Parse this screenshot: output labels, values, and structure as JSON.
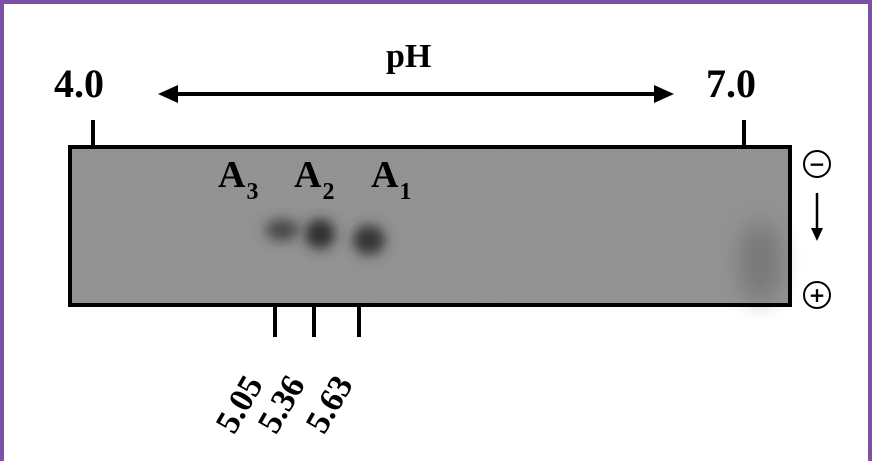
{
  "ph_axis": {
    "title": "pH",
    "low": "4.0",
    "high": "7.0"
  },
  "bands": [
    {
      "label": "A",
      "sub": "3",
      "pi": 5.05
    },
    {
      "label": "A",
      "sub": "2",
      "pi": 5.36
    },
    {
      "label": "A",
      "sub": "1",
      "pi": 5.63
    }
  ],
  "pi_labels": [
    "5.05",
    "5.36",
    "5.63"
  ],
  "electrodes": {
    "top": "−",
    "bottom": "+"
  },
  "colors": {
    "frame": "#7b52a6",
    "gel": "#8f8f8f",
    "band": "#2e2e2e"
  },
  "icons": {
    "ph_range": "double-headed-arrow-icon",
    "migration": "down-arrow-icon"
  }
}
